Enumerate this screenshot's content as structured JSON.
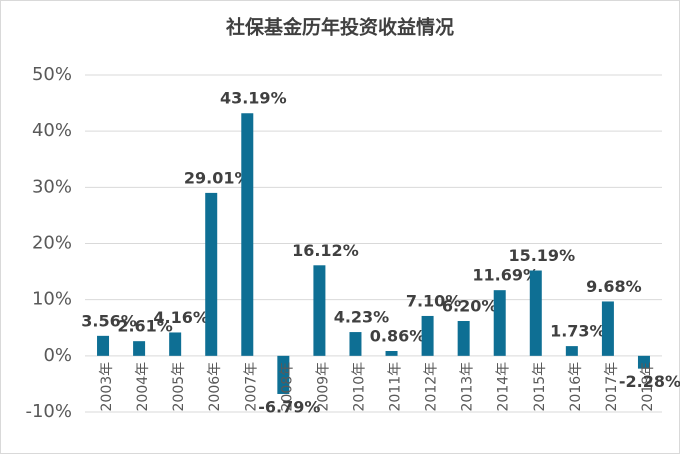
{
  "chart_data": {
    "type": "bar",
    "title": "社保基金历年投资收益情况",
    "categories": [
      "2003年",
      "2004年",
      "2005年",
      "2006年",
      "2007年",
      "2008年",
      "2009年",
      "2010年",
      "2011年",
      "2012年",
      "2013年",
      "2014年",
      "2015年",
      "2016年",
      "2017年",
      "2018年"
    ],
    "values": [
      3.56,
      2.61,
      4.16,
      29.01,
      43.19,
      -6.79,
      16.12,
      4.23,
      0.86,
      7.1,
      6.2,
      11.69,
      15.19,
      1.73,
      9.68,
      -2.28
    ],
    "value_labels": [
      "3.56%",
      "2.61%",
      "4.16%",
      "29.01%",
      "43.19%",
      "-6.79%",
      "16.12%",
      "4.23%",
      "0.86%",
      "7.10%",
      "6.20%",
      "11.69%",
      "15.19%",
      "1.73%",
      "9.68%",
      "-2.28%"
    ],
    "color": "#0e6f94",
    "ylim": [
      -10,
      50
    ],
    "yticks": [
      {
        "value": -10,
        "label": "-10%"
      },
      {
        "value": 0,
        "label": "0%"
      },
      {
        "value": 10,
        "label": "10%"
      },
      {
        "value": 20,
        "label": "20%"
      },
      {
        "value": 30,
        "label": "30%"
      },
      {
        "value": 40,
        "label": "40%"
      },
      {
        "value": 50,
        "label": "50%"
      }
    ],
    "grid": true
  }
}
